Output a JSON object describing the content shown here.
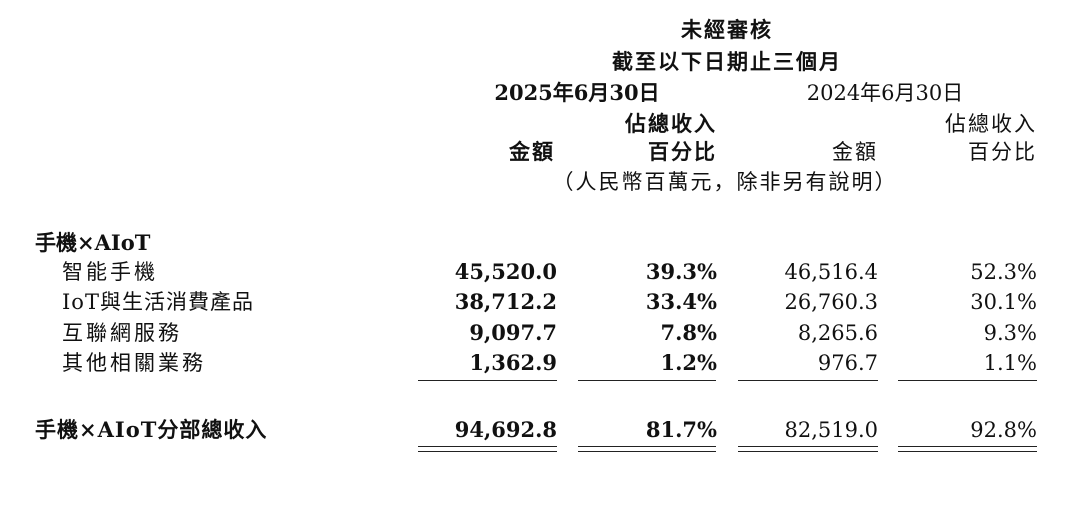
{
  "header": {
    "line1": "未經審核",
    "line2": "截至以下日期止三個月",
    "periods": [
      {
        "date": "2025年6月30日",
        "amount_label": "金額",
        "share_label": [
          "佔總收入",
          "百分比"
        ]
      },
      {
        "date": "2024年6月30日",
        "amount_label": "金額",
        "share_label": [
          "佔總收入",
          "百分比"
        ]
      }
    ],
    "unit": "（人民幣百萬元，除非另有說明）"
  },
  "table": {
    "section": "手機×AIoT",
    "rows": [
      {
        "label": "智能手機",
        "values": [
          "45,520.0",
          "39.3%",
          "46,516.4",
          "52.3%"
        ]
      },
      {
        "label": "IoT與生活消費產品",
        "values": [
          "38,712.2",
          "33.4%",
          "26,760.3",
          "30.1%"
        ]
      },
      {
        "label": "互聯網服務",
        "values": [
          "9,097.7",
          "7.8%",
          "8,265.6",
          "9.3%"
        ]
      },
      {
        "label": "其他相關業務",
        "values": [
          "1,362.9",
          "1.2%",
          "976.7",
          "1.1%"
        ]
      }
    ],
    "total": {
      "label": "手機×AIoT分部總收入",
      "values": [
        "94,692.8",
        "81.7%",
        "82,519.0",
        "92.8%"
      ]
    }
  }
}
